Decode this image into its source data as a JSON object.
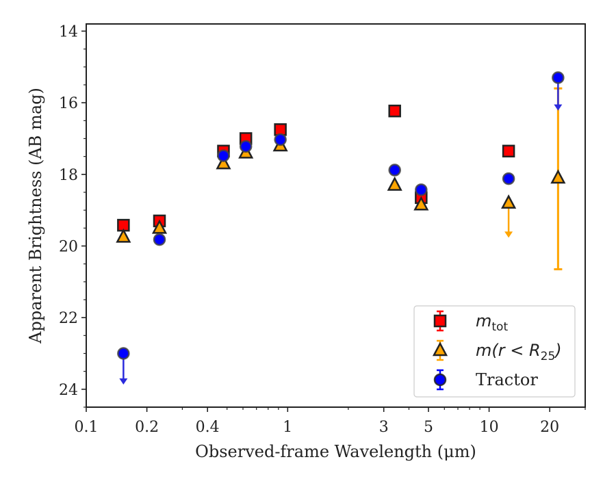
{
  "chart_data": {
    "type": "scatter",
    "xlabel": "Observed-frame Wavelength (μm)",
    "ylabel": "Apparent Brightness (AB mag)",
    "xscale": "log",
    "xlim": [
      0.1,
      30
    ],
    "ylim": [
      24.5,
      13.8
    ],
    "y_inverted": true,
    "x_ticks": [
      0.1,
      0.2,
      0.4,
      1,
      3,
      5,
      10,
      20
    ],
    "x_tick_labels": [
      "0.1",
      "0.2",
      "0.4",
      "1",
      "3",
      "5",
      "10",
      "20"
    ],
    "y_ticks": [
      14,
      16,
      18,
      20,
      22,
      24
    ],
    "y_tick_labels": [
      "14",
      "16",
      "18",
      "20",
      "22",
      "24"
    ],
    "legend_position": "lower right",
    "series": [
      {
        "name": "m_tot",
        "label_parts": [
          "m",
          "tot"
        ],
        "marker": "square",
        "color": "#ff0000",
        "edge_color": "#222222",
        "points": [
          {
            "x": 0.153,
            "y": 19.42
          },
          {
            "x": 0.231,
            "y": 19.3
          },
          {
            "x": 0.48,
            "y": 17.35
          },
          {
            "x": 0.62,
            "y": 17.0
          },
          {
            "x": 0.92,
            "y": 16.75
          },
          {
            "x": 3.4,
            "y": 16.23
          },
          {
            "x": 4.6,
            "y": 18.65
          },
          {
            "x": 12.5,
            "y": 17.35
          }
        ]
      },
      {
        "name": "m(r < R25)",
        "label_parts": [
          "m(r < R",
          "25",
          ")"
        ],
        "marker": "triangle",
        "color": "#ffa500",
        "edge_color": "#222222",
        "points": [
          {
            "x": 0.153,
            "y": 19.75
          },
          {
            "x": 0.231,
            "y": 19.5
          },
          {
            "x": 0.48,
            "y": 17.7
          },
          {
            "x": 0.62,
            "y": 17.4
          },
          {
            "x": 0.92,
            "y": 17.2
          },
          {
            "x": 3.4,
            "y": 18.3
          },
          {
            "x": 4.6,
            "y": 18.85
          },
          {
            "x": 12.5,
            "y": 18.8,
            "upper_limit_to": 19.75
          },
          {
            "x": 22,
            "y": 18.1,
            "err_low": 15.6,
            "err_high": 20.65
          }
        ]
      },
      {
        "name": "Tractor",
        "marker": "circle",
        "color": "#0000ff",
        "edge_color": "#444444",
        "points": [
          {
            "x": 0.153,
            "y": 23.0,
            "upper_limit_to": 23.85
          },
          {
            "x": 0.231,
            "y": 19.82
          },
          {
            "x": 0.48,
            "y": 17.48
          },
          {
            "x": 0.62,
            "y": 17.22
          },
          {
            "x": 0.92,
            "y": 17.03
          },
          {
            "x": 3.4,
            "y": 17.88
          },
          {
            "x": 4.6,
            "y": 18.43
          },
          {
            "x": 12.5,
            "y": 18.12
          },
          {
            "x": 22,
            "y": 15.3,
            "upper_limit_to": 16.2
          }
        ]
      }
    ],
    "legend": [
      {
        "label_parts": [
          "m",
          "tot"
        ],
        "marker": "square",
        "color": "#ff0000"
      },
      {
        "label_parts": [
          "m(r < R",
          "25",
          ")"
        ],
        "marker": "triangle",
        "color": "#ffa500"
      },
      {
        "label_parts": [
          "Tractor"
        ],
        "marker": "circle",
        "color": "#0000ff"
      }
    ]
  }
}
